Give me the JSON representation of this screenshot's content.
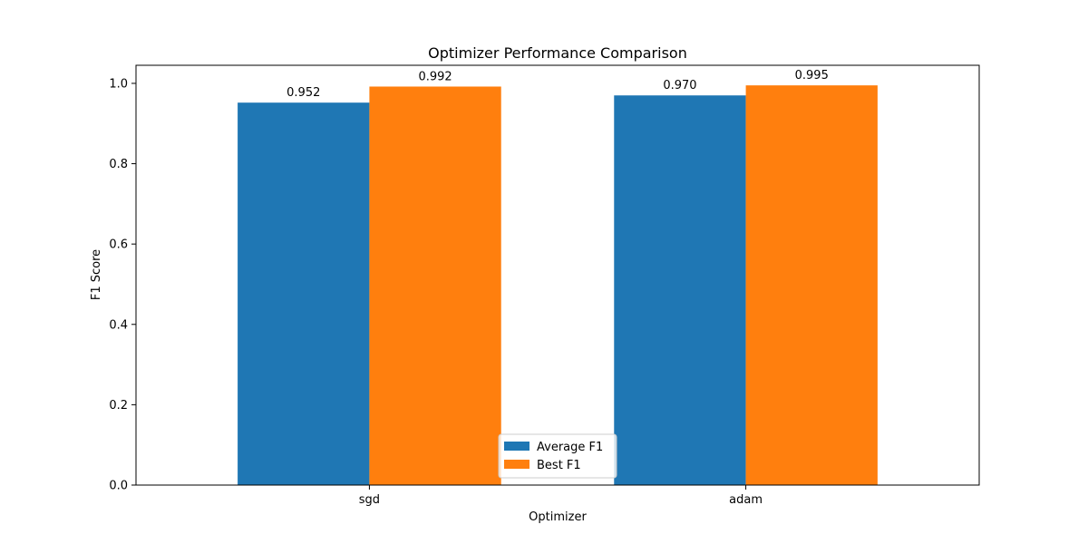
{
  "chart_data": {
    "type": "bar",
    "title": "Optimizer Performance Comparison",
    "xlabel": "Optimizer",
    "ylabel": "F1 Score",
    "categories": [
      "sgd",
      "adam"
    ],
    "series": [
      {
        "name": "Average F1",
        "values": [
          0.952,
          0.97
        ],
        "color": "#1f77b4"
      },
      {
        "name": "Best F1",
        "values": [
          0.992,
          0.995
        ],
        "color": "#ff7f0e"
      }
    ],
    "data_labels": [
      [
        "0.952",
        "0.970"
      ],
      [
        "0.992",
        "0.995"
      ]
    ],
    "ylim": [
      0,
      1.045
    ],
    "yticks": [
      0.0,
      0.2,
      0.4,
      0.6,
      0.8,
      1.0
    ],
    "ytick_labels": [
      "0.0",
      "0.2",
      "0.4",
      "0.6",
      "0.8",
      "1.0"
    ],
    "grid": false,
    "legend_position": "lower-center"
  }
}
